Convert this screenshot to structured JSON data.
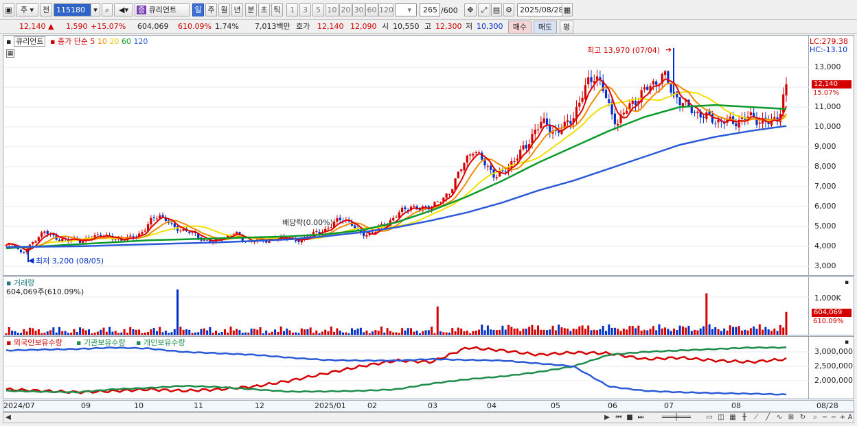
{
  "toolbar": {
    "market": "주",
    "prev_label": "전",
    "code": "115180",
    "stock_badge": "증",
    "stock_name": "큐리언트",
    "periods": [
      "일",
      "주",
      "월",
      "년",
      "분",
      "초",
      "틱"
    ],
    "intervals": [
      "1",
      "3",
      "5",
      "10",
      "20",
      "30",
      "60",
      "120"
    ],
    "count": "265",
    "count_max": "/600",
    "date": "2025/08/28"
  },
  "quote": {
    "price": "12,140",
    "change": "1,590",
    "change_pct": "+15.07%",
    "volume": "604,069",
    "volume_ratio": "610.09%",
    "turnover": "1.74%",
    "amount": "7,013백만",
    "hoga_label": "호가",
    "ask": "12,140",
    "bid": "12,090",
    "open_label": "시",
    "open": "10,550",
    "high_label": "고",
    "high": "12,300",
    "low_label": "저",
    "low": "10,300",
    "buy": "매수",
    "sell": "매도",
    "avg": "평"
  },
  "price_panel": {
    "title": "큐리언트",
    "ma_label": "종가 단순 5",
    "ma_periods": [
      "10",
      "20",
      "60",
      "120"
    ],
    "high_note": "최고 13,970 (07/04)",
    "low_note": "최저 3,200 (08/05)",
    "dividend_note": "배당락(0.00%)",
    "lc": "LC:279.38",
    "hc": "HC:-13.10",
    "last_price": "12,140",
    "last_pct": "15.07%",
    "ticks": [
      "13,000",
      "12,000",
      "11,000",
      "10,000",
      "9,000",
      "8,000",
      "7,000",
      "6,000",
      "5,000",
      "4,000",
      "3,000"
    ]
  },
  "volume_panel": {
    "title": "거래량",
    "subtitle": "604,069주(610.09%)",
    "tick": "1,000K",
    "last": "604,069",
    "last_pct": "610.09%"
  },
  "holdings_panel": {
    "legend": [
      "외국인보유수량",
      "기관보유수량",
      "개인보유수량"
    ],
    "ticks": [
      "3,000,000",
      "2,500,000",
      "2,000,000"
    ]
  },
  "x_axis": [
    "2024/07",
    "09",
    "10",
    "11",
    "12",
    "2025/01",
    "02",
    "03",
    "04",
    "05",
    "06",
    "07",
    "08",
    "08/28"
  ],
  "colors": {
    "up": "#d40000",
    "down": "#0030c8",
    "ma5": "#e00000",
    "ma10": "#f08c00",
    "ma20": "#f0e000",
    "ma60": "#0a9a2a",
    "ma120": "#2a5ad8",
    "foreign": "#d40000",
    "inst": "#1e8c4a",
    "indiv": "#2a5ad8"
  },
  "chart_data": [
    {
      "type": "candlestick",
      "title": "큐리언트",
      "x_range": [
        "2024/07",
        "2025/08/28"
      ],
      "ylim": [
        2500,
        14300
      ],
      "close": [
        4020,
        4150,
        3620,
        3950,
        4450,
        4720,
        4520,
        4360,
        4280,
        4380,
        4250,
        4400,
        4600,
        4480,
        4380,
        4350,
        4400,
        4500,
        4800,
        5300,
        5600,
        5300,
        4900,
        4850,
        4700,
        4500,
        4300,
        4200,
        4450,
        4500,
        4700,
        4350,
        4150,
        4420,
        4300,
        4350,
        4480,
        4400,
        4200,
        4450,
        4600,
        4700,
        4900,
        5200,
        5400,
        5200,
        4700,
        4600,
        4650,
        5000,
        5200,
        5500,
        5900,
        6000,
        5800,
        6000,
        6100,
        6300,
        6800,
        7500,
        8300,
        8900,
        8400,
        8000,
        7500,
        7700,
        8200,
        8600,
        9000,
        9800,
        10200,
        10000,
        9700,
        10000,
        10500,
        11200,
        12200,
        12700,
        11900,
        10800,
        10200,
        10800,
        11300,
        11600,
        12000,
        12300,
        12600,
        11800,
        11400,
        11000,
        10800,
        10600,
        10400,
        10300,
        10300,
        10200,
        10400,
        10500,
        10400,
        10300,
        10150,
        10550,
        12140
      ],
      "high_mark": 13970,
      "low_mark": 3200,
      "ma_periods": [
        5,
        10,
        20,
        60,
        120
      ],
      "ma120": [
        3950,
        3980,
        4000,
        4050,
        4100,
        4150,
        4200,
        4270,
        4350,
        4500,
        4700,
        4950,
        5300,
        5700,
        6200,
        6800,
        7300,
        7900,
        8500,
        9100,
        9500,
        9800,
        10050
      ],
      "ma60": [
        3900,
        4000,
        4100,
        4200,
        4300,
        4350,
        4400,
        4450,
        4500,
        4600,
        4800,
        5200,
        5800,
        6500,
        7300,
        8200,
        9000,
        9800,
        10500,
        11000,
        11100,
        11000,
        10900
      ]
    },
    {
      "type": "bar",
      "title": "거래량",
      "last_value": 604069,
      "last_ratio_pct": 610.09,
      "ytick": 1000000
    },
    {
      "type": "line",
      "title": "보유수량",
      "series": [
        {
          "name": "외국인보유수량",
          "values": [
            1700000,
            1650000,
            1600000,
            1640000,
            1700000,
            1650000,
            1700000,
            1800000,
            2000000,
            2250000,
            2500000,
            2700000,
            2650000,
            3150000,
            3050000,
            2900000,
            2980000,
            2950000,
            2750000,
            2800000,
            2700000,
            2650000,
            2750000
          ]
        },
        {
          "name": "기관보유수량",
          "values": [
            1650000,
            1620000,
            1600000,
            1700000,
            1750000,
            1820000,
            1780000,
            1700000,
            1620000,
            1630000,
            1650000,
            1700000,
            1900000,
            2050000,
            2150000,
            2300000,
            2500000,
            2900000,
            3000000,
            3050000,
            3100000,
            3150000,
            3150000
          ]
        },
        {
          "name": "개인보유수량",
          "values": [
            3050000,
            3080000,
            3100000,
            3150000,
            3120000,
            3000000,
            2950000,
            2900000,
            2800000,
            2720000,
            2700000,
            2700000,
            2750000,
            2720000,
            2700000,
            2600000,
            2500000,
            1800000,
            1650000,
            1600000,
            1570000,
            1550000,
            1520000
          ]
        }
      ],
      "yticks": [
        3000000,
        2500000,
        2000000
      ]
    }
  ]
}
